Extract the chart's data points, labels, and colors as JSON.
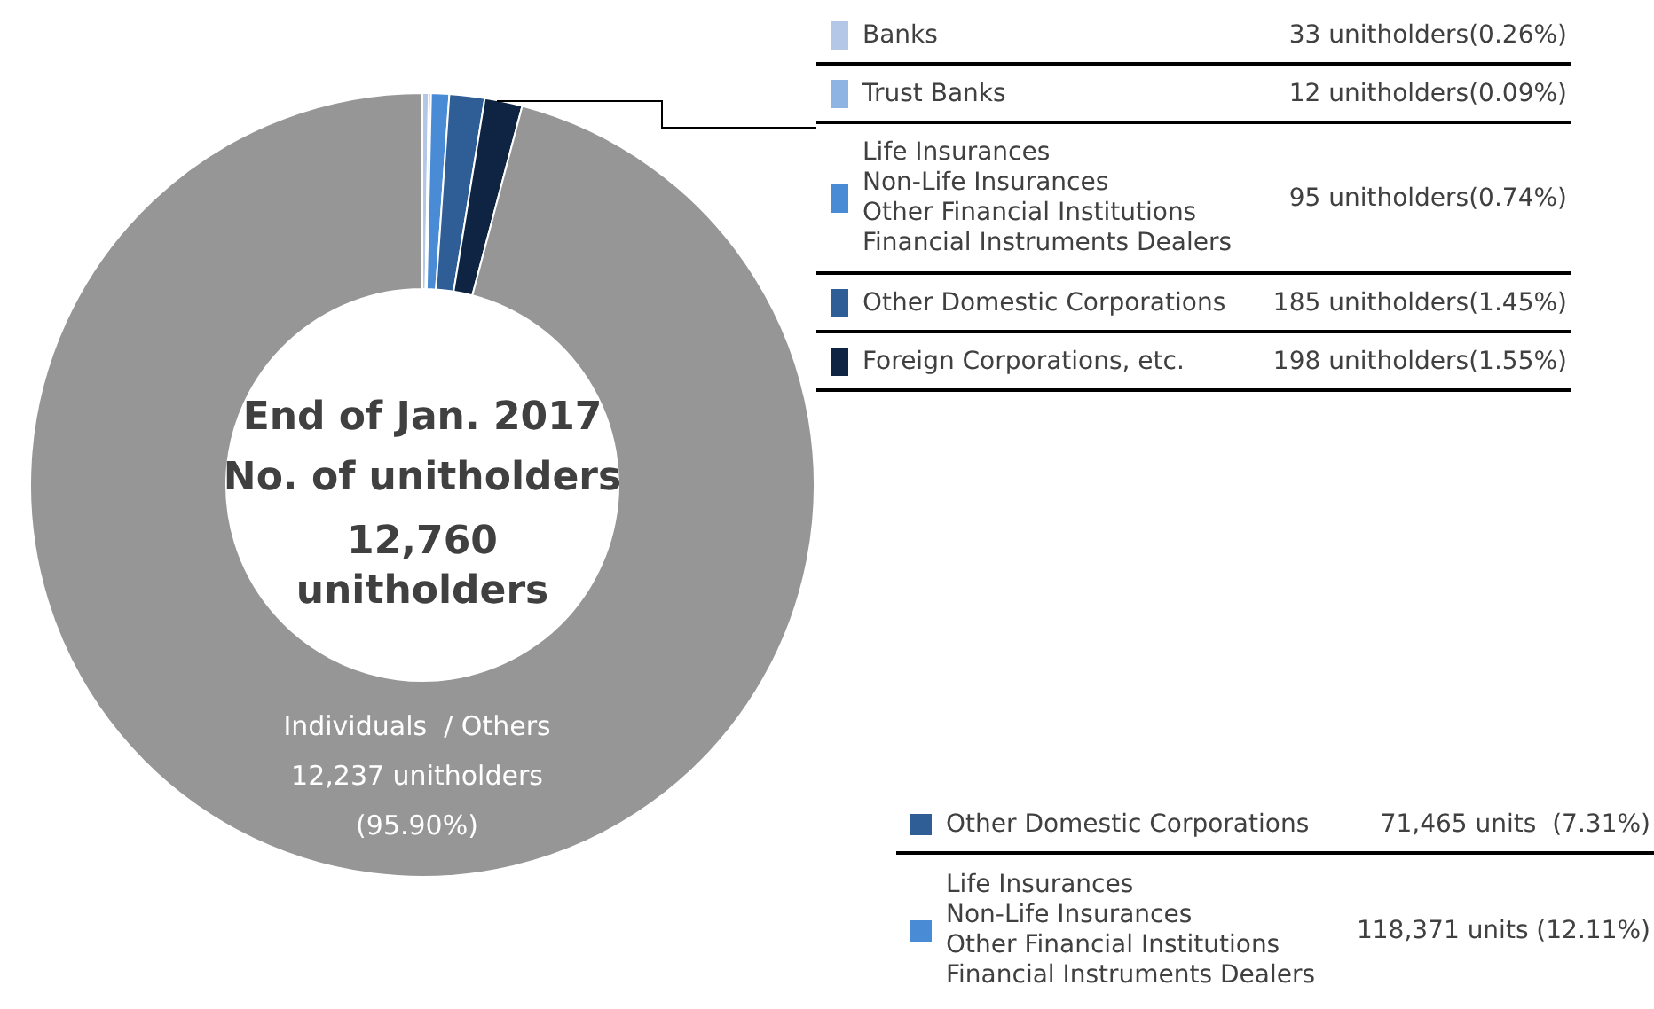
{
  "chart_data": [
    {
      "type": "donut",
      "title": "End of Jan. 2017",
      "annotations": [
        "No. of unitholders",
        "12,760\nunitholders"
      ],
      "categories": [
        "Banks",
        "Trust Banks",
        "Life Insurances\nNon-Life Insurances\nOther Financial Institutions\nFinancial Instruments Dealers",
        "Other Domestic Corporations",
        "Foreign Corporations, etc.",
        "Individuals  / Others"
      ],
      "values": [
        33,
        12,
        95,
        185,
        198,
        12237
      ],
      "colors": [
        "#b4c7e7",
        "#8eb4e3",
        "#4a8bd6",
        "#2f5d95",
        "#0e2442",
        "#969696"
      ],
      "value_labels": [
        "33 unitholders(0.26%)",
        "12 unitholders(0.09%)",
        "95 unitholders(0.74%)",
        "185 unitholders(1.45%)",
        "198 unitholders(1.55%)",
        "12,237 unitholders\n(95.90%)"
      ],
      "legend": "top right"
    },
    {
      "type": "other",
      "categories": [
        "Other Domestic Corporations",
        "Life Insurances\nNon-Life Insurances\nOther Financial Institutions\nFinancial Instruments Dealers"
      ],
      "colors": [
        "#2f5d95",
        "#4a8bd6"
      ],
      "value_labels": [
        "71,465 units  (7.31%)",
        "118,371 units (12.11%)"
      ]
    }
  ]
}
